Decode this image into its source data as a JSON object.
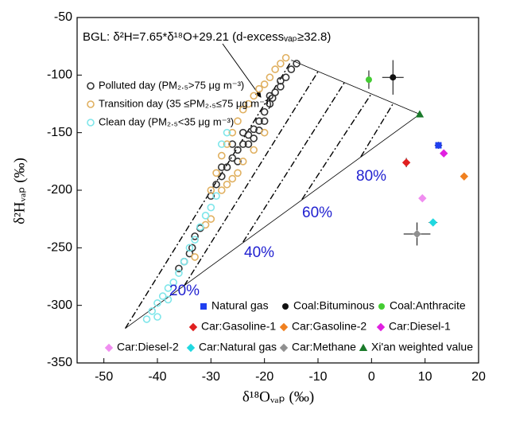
{
  "chart_data": {
    "type": "scatter",
    "xlabel": "δ¹⁸Oᵥₐₚ (‰)",
    "ylabel": "δ²Hᵥₐₚ (‰)",
    "annotation": "BGL: δ²H=7.65*δ¹⁸O+29.21 (d-excessᵥₐₚ≥32.8)",
    "percent_labels": [
      "20%",
      "40%",
      "60%",
      "80%"
    ],
    "xlim": [
      -55,
      20
    ],
    "ylim": [
      -350,
      -50
    ],
    "xticks": [
      -50,
      -40,
      -30,
      -20,
      -10,
      0,
      10,
      20
    ],
    "yticks": [
      -350,
      -300,
      -250,
      -200,
      -150,
      -100,
      -50
    ],
    "mixing_lines": [
      {
        "style": "dashdot",
        "x": [
          -46,
          -15
        ],
        "y": [
          -320,
          -88
        ]
      },
      {
        "style": "dashdot",
        "x": [
          -35,
          -10
        ],
        "y": [
          -283,
          -97
        ]
      },
      {
        "style": "dashdot",
        "x": [
          -24,
          -5
        ],
        "y": [
          -245,
          -106
        ]
      },
      {
        "style": "dashdot",
        "x": [
          -13,
          0
        ],
        "y": [
          -208,
          -116
        ]
      },
      {
        "style": "dashdot",
        "x": [
          -2,
          4
        ],
        "y": [
          -171,
          -125
        ]
      },
      {
        "style": "solid",
        "x": [
          -46,
          9
        ],
        "y": [
          -320,
          -134
        ]
      },
      {
        "style": "solid",
        "x": [
          -15,
          9
        ],
        "y": [
          -87,
          -134
        ]
      }
    ],
    "series": [
      {
        "name": "Polluted day (PM₂.₅>75 μg m⁻³)",
        "color": "#333333",
        "marker": "open-circle",
        "x": [
          -36,
          -35,
          -34,
          -33.5,
          -33,
          -32,
          -30,
          -29,
          -28,
          -27,
          -26,
          -25,
          -24,
          -23,
          -22,
          -21,
          -20,
          -19,
          -18.5,
          -18,
          -17,
          -16,
          -15,
          -14,
          -25,
          -22,
          -20,
          -28,
          -26,
          -24,
          -19,
          -17,
          -21,
          -23
        ],
        "values": [
          -268,
          -262,
          -255,
          -250,
          -240,
          -233,
          -205,
          -195,
          -188,
          -180,
          -172,
          -165,
          -160,
          -152,
          -147,
          -140,
          -132,
          -125,
          -120,
          -115,
          -110,
          -102,
          -95,
          -90,
          -175,
          -155,
          -140,
          -180,
          -160,
          -150,
          -118,
          -105,
          -148,
          -160
        ]
      },
      {
        "name": "Transition day (35 ≤PM₂.₅≤75 μg m⁻³)",
        "color": "#e0b060",
        "marker": "open-circle",
        "x": [
          -33,
          -31,
          -30,
          -29,
          -28,
          -27,
          -26,
          -25,
          -24,
          -23,
          -22,
          -21,
          -20,
          -19,
          -18,
          -17,
          -16,
          -28,
          -27,
          -26,
          -30,
          -24,
          -22,
          -20,
          -25
        ],
        "values": [
          -258,
          -230,
          -200,
          -185,
          -170,
          -160,
          -150,
          -140,
          -130,
          -125,
          -118,
          -112,
          -108,
          -102,
          -95,
          -90,
          -85,
          -200,
          -195,
          -190,
          -225,
          -175,
          -165,
          -150,
          -185
        ]
      },
      {
        "name": "Clean day (PM₂.₅<35 μg m⁻³)",
        "color": "#7fe6ea",
        "marker": "open-circle",
        "x": [
          -42,
          -41,
          -40,
          -39,
          -38,
          -37,
          -36,
          -35,
          -34,
          -33,
          -32,
          -31,
          -30,
          -29,
          -40,
          -38,
          -27,
          -28
        ],
        "values": [
          -312,
          -305,
          -298,
          -292,
          -285,
          -280,
          -272,
          -262,
          -250,
          -243,
          -232,
          -222,
          -215,
          -205,
          -310,
          -295,
          -150,
          -160
        ]
      },
      {
        "name": "Natural gas",
        "color": "#1f3ff0",
        "marker": "square",
        "x": [
          12.5
        ],
        "values": [
          -161
        ],
        "xerr": [
          0.7
        ],
        "yerr": [
          3
        ]
      },
      {
        "name": "Coal:Bituminous",
        "color": "#111111",
        "marker": "circle",
        "x": [
          4
        ],
        "values": [
          -102
        ],
        "xerr": [
          2
        ],
        "yerr": [
          15
        ]
      },
      {
        "name": "Coal:Anthracite",
        "color": "#44cc33",
        "marker": "circle",
        "x": [
          -0.5
        ],
        "values": [
          -104
        ],
        "xerr": [
          0.3
        ],
        "yerr": [
          8
        ]
      },
      {
        "name": "Car:Gasoline-1",
        "color": "#e02020",
        "marker": "diamond",
        "x": [
          6.5
        ],
        "values": [
          -176
        ],
        "xerr": [
          0.5
        ],
        "yerr": [
          4
        ]
      },
      {
        "name": "Car:Gasoline-2",
        "color": "#f08020",
        "marker": "diamond",
        "x": [
          17.3
        ],
        "values": [
          -188
        ],
        "xerr": [
          0.3
        ],
        "yerr": [
          1
        ]
      },
      {
        "name": "Car:Diesel-1",
        "color": "#e020e0",
        "marker": "diamond",
        "x": [
          13.5
        ],
        "values": [
          -168
        ],
        "xerr": [
          0.4
        ],
        "yerr": [
          3
        ]
      },
      {
        "name": "Car:Diesel-2",
        "color": "#f08ef0",
        "marker": "diamond",
        "x": [
          9.5
        ],
        "values": [
          -207
        ],
        "xerr": [
          0.4
        ],
        "yerr": [
          2
        ]
      },
      {
        "name": "Car:Natural gas",
        "color": "#20d8e0",
        "marker": "diamond",
        "x": [
          11.5
        ],
        "values": [
          -228
        ],
        "xerr": [
          0.8
        ],
        "yerr": [
          3
        ]
      },
      {
        "name": "Car:Methane",
        "color": "#909090",
        "marker": "diamond",
        "x": [
          8.5
        ],
        "values": [
          -238
        ],
        "xerr": [
          2.5
        ],
        "yerr": [
          10
        ]
      },
      {
        "name": "Xi'an weighted value",
        "color": "#1a7a2a",
        "marker": "triangle",
        "x": [
          9
        ],
        "values": [
          -134
        ]
      }
    ]
  }
}
